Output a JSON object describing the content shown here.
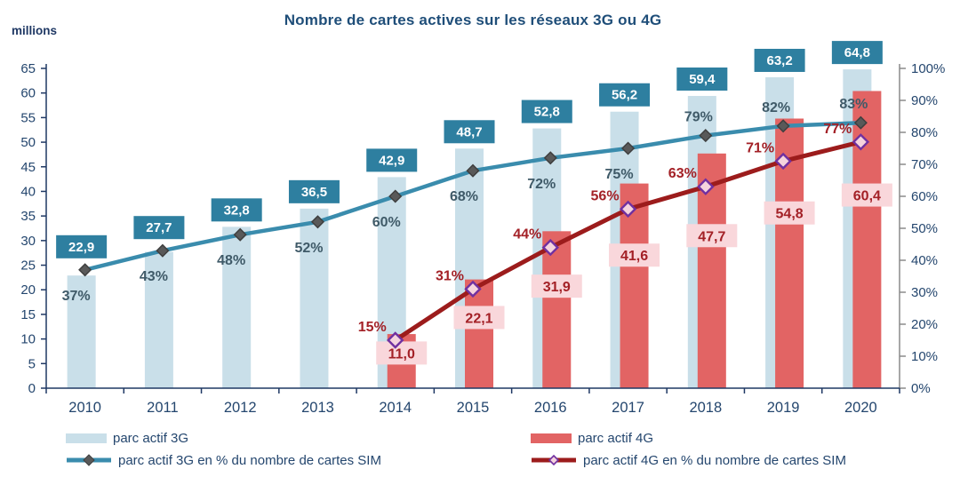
{
  "title": "Nombre de cartes actives sur les réseaux 3G ou 4G",
  "chart_data": {
    "type": "bar+line combo",
    "title": "Nombre de cartes actives sur les réseaux 3G ou 4G",
    "categories": [
      "2010",
      "2011",
      "2012",
      "2013",
      "2014",
      "2015",
      "2016",
      "2017",
      "2018",
      "2019",
      "2020"
    ],
    "left_axis": {
      "label": "millions",
      "min": 0,
      "max": 65,
      "step": 5,
      "ticks": [
        "0",
        "5",
        "10",
        "15",
        "20",
        "25",
        "30",
        "35",
        "40",
        "45",
        "50",
        "55",
        "60",
        "65"
      ]
    },
    "right_axis": {
      "min": 0,
      "max": 100,
      "step": 10,
      "ticks": [
        "0%",
        "10%",
        "20%",
        "30%",
        "40%",
        "50%",
        "60%",
        "70%",
        "80%",
        "90%",
        "100%"
      ]
    },
    "grid": "off",
    "legend_position": "bottom-two-columns",
    "series": [
      {
        "name": "parc actif 3G",
        "type": "bar",
        "axis": "left",
        "values": [
          22.9,
          27.7,
          32.8,
          36.5,
          42.9,
          48.7,
          52.8,
          56.2,
          59.4,
          63.2,
          64.8
        ],
        "labels": [
          "22,9",
          "27,7",
          "32,8",
          "36,5",
          "42,9",
          "48,7",
          "52,8",
          "56,2",
          "59,4",
          "63,2",
          "64,8"
        ]
      },
      {
        "name": "parc actif 4G",
        "type": "bar",
        "axis": "left",
        "values": [
          null,
          null,
          null,
          null,
          11.0,
          22.1,
          31.9,
          41.6,
          47.7,
          54.8,
          60.4
        ],
        "labels": [
          null,
          null,
          null,
          null,
          "11,0",
          "22,1",
          "31,9",
          "41,6",
          "47,7",
          "54,8",
          "60,4"
        ]
      },
      {
        "name": "parc actif 3G en % du nombre de cartes SIM",
        "type": "line",
        "axis": "right",
        "values": [
          37,
          43,
          48,
          52,
          60,
          68,
          72,
          75,
          79,
          82,
          83
        ],
        "labels": [
          "37%",
          "43%",
          "48%",
          "52%",
          "60%",
          "68%",
          "72%",
          "75%",
          "79%",
          "82%",
          "83%"
        ],
        "label_pos": [
          "below",
          "below",
          "below",
          "below",
          "below",
          "below",
          "below",
          "below",
          "above",
          "above",
          "above"
        ]
      },
      {
        "name": "parc actif 4G en % du nombre de cartes SIM",
        "type": "line",
        "axis": "right",
        "values": [
          null,
          null,
          null,
          null,
          15,
          31,
          44,
          56,
          63,
          71,
          77
        ],
        "labels": [
          null,
          null,
          null,
          null,
          "15%",
          "31%",
          "44%",
          "56%",
          "63%",
          "71%",
          "77%"
        ],
        "label_pos": [
          null,
          null,
          null,
          null,
          "above-left",
          "above-left",
          "above-left",
          "above-left",
          "above-left",
          "above-left",
          "above-left"
        ]
      }
    ]
  },
  "colors": {
    "title": "#1f4e79",
    "axis_text": "#24466e",
    "axis_line": "#1f3864",
    "right_axis_line": "#8a8a8a",
    "bar_3g": "#c9dfe9",
    "bar_4g": "#e26464",
    "value_box_3g_bg": "#2e7fa0",
    "value_box_3g_text": "#ffffff",
    "value_box_4g_bg": "#f9d7db",
    "value_box_4g_text": "#a32026",
    "line_3g": "#3a8cad",
    "marker_3g_fill": "#595959",
    "marker_3g_stroke": "#3f3f3f",
    "pct_label_3g": "#3f5a68",
    "line_4g": "#9c1c1c",
    "marker_4g_fill": "#f5d3dd",
    "marker_4g_stroke": "#7030a0",
    "pct_label_4g": "#a32026"
  }
}
